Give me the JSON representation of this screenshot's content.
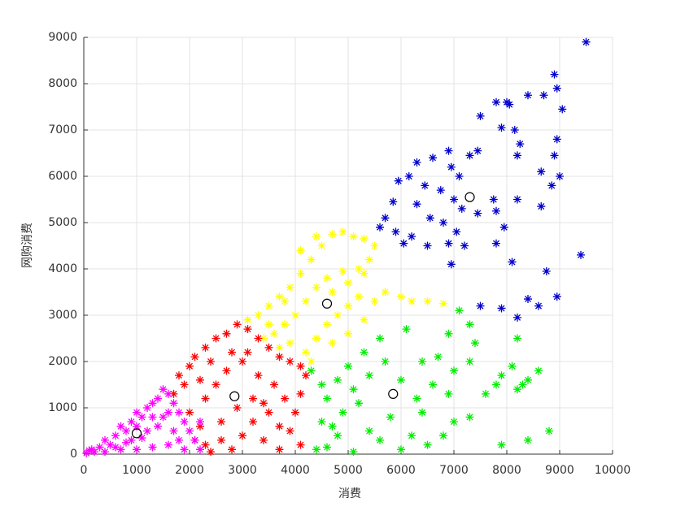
{
  "chart_data": {
    "type": "scatter",
    "xlabel": "消费",
    "ylabel": "网购消费",
    "xlim": [
      0,
      10000
    ],
    "ylim": [
      0,
      9000
    ],
    "xticks": [
      0,
      1000,
      2000,
      3000,
      4000,
      5000,
      6000,
      7000,
      8000,
      9000,
      10000
    ],
    "yticks": [
      0,
      1000,
      2000,
      3000,
      4000,
      5000,
      6000,
      7000,
      8000,
      9000
    ],
    "grid": true,
    "series": [
      {
        "color": "#0000cc",
        "marker": "*",
        "x": [
          9500,
          8900,
          8950,
          9050,
          7800,
          8000,
          8050,
          7500,
          7900,
          8150,
          8400,
          8700,
          8950,
          8250,
          8900,
          8650,
          9000,
          8850,
          8200,
          8650,
          8200,
          7450,
          7300,
          6900,
          6950,
          6600,
          6300,
          6150,
          5950,
          6450,
          7100,
          6750,
          7000,
          7150,
          7450,
          7750,
          7800,
          7950,
          7800,
          6800,
          6550,
          6300,
          5850,
          5700,
          5600,
          5900,
          6200,
          6050,
          6500,
          6900,
          7050,
          7200,
          6950,
          8100,
          8750,
          9400,
          8400,
          8600,
          8950,
          7900,
          8200,
          7500
        ],
        "y": [
          8900,
          8200,
          7900,
          7450,
          7600,
          7600,
          7550,
          7300,
          7050,
          7000,
          7750,
          7750,
          6800,
          6700,
          6450,
          6100,
          6000,
          5800,
          6450,
          5350,
          5500,
          6550,
          6450,
          6550,
          6200,
          6400,
          6300,
          6000,
          5900,
          5800,
          6000,
          5700,
          5500,
          5300,
          5200,
          5500,
          5250,
          4900,
          4550,
          5000,
          5100,
          5400,
          5450,
          5100,
          4900,
          4800,
          4700,
          4550,
          4500,
          4550,
          4800,
          4500,
          4100,
          4150,
          3950,
          4300,
          3350,
          3200,
          3400,
          3150,
          2950,
          3200
        ]
      },
      {
        "color": "#ffff00",
        "marker": "*",
        "x": [
          3100,
          3300,
          3500,
          3700,
          3900,
          4100,
          4300,
          4500,
          4700,
          4900,
          5100,
          5300,
          5500,
          5400,
          5200,
          4900,
          4600,
          4400,
          4200,
          4000,
          3800,
          3600,
          3400,
          3700,
          3900,
          4200,
          4400,
          4600,
          4800,
          5000,
          5200,
          5500,
          5700,
          6000,
          6200,
          6500,
          6800,
          4300,
          4700,
          5000,
          5300,
          4400,
          4100,
          3800,
          3500,
          4700,
          5000,
          5300
        ],
        "y": [
          2900,
          3000,
          3200,
          3400,
          3600,
          3900,
          4200,
          4500,
          4750,
          4800,
          4700,
          4650,
          4500,
          4200,
          4000,
          3950,
          3800,
          3600,
          3300,
          3000,
          2800,
          2600,
          2500,
          2300,
          2400,
          2200,
          2500,
          2800,
          3000,
          3200,
          3400,
          3300,
          3500,
          3400,
          3300,
          3300,
          3250,
          2000,
          2400,
          2600,
          2900,
          4700,
          4400,
          3300,
          2800,
          3500,
          3700,
          3900
        ]
      },
      {
        "color": "#00ee00",
        "marker": "*",
        "x": [
          4400,
          4600,
          5100,
          4500,
          4700,
          4900,
          5200,
          5400,
          5600,
          5800,
          6000,
          6200,
          6500,
          6800,
          7000,
          7300,
          7600,
          7900,
          8200,
          8400,
          8600,
          8800,
          8400,
          7900,
          4600,
          4800,
          5000,
          5300,
          5600,
          6100,
          6400,
          6700,
          6900,
          7100,
          7300,
          7400,
          7000,
          6600,
          6300,
          6000,
          5700,
          5400,
          5100,
          4800,
          6400,
          6900,
          7300,
          7800,
          8200,
          8100,
          8300,
          4300,
          4500
        ],
        "y": [
          100,
          150,
          50,
          700,
          600,
          900,
          1100,
          500,
          300,
          800,
          100,
          400,
          200,
          400,
          700,
          800,
          1300,
          1700,
          1400,
          1600,
          1800,
          500,
          300,
          200,
          1200,
          1600,
          1900,
          2200,
          2500,
          2700,
          2000,
          2100,
          2600,
          3100,
          2800,
          2400,
          1800,
          1500,
          1200,
          1600,
          2000,
          1700,
          1400,
          400,
          900,
          1300,
          2000,
          1500,
          2500,
          1900,
          1500,
          1800,
          1500
        ]
      },
      {
        "color": "#ff0000",
        "marker": "*",
        "x": [
          1700,
          1800,
          1900,
          2000,
          2100,
          2300,
          2500,
          2700,
          2900,
          3100,
          3300,
          3500,
          3700,
          3900,
          4100,
          4200,
          4100,
          4000,
          3900,
          4100,
          3700,
          3400,
          3200,
          3000,
          2800,
          2600,
          2400,
          2200,
          2000,
          2300,
          2500,
          2700,
          3000,
          3300,
          3600,
          3800,
          3500,
          3200,
          2900,
          2600,
          2300,
          2100,
          2200,
          2400,
          2800,
          3100,
          3400,
          3700
        ],
        "y": [
          1300,
          1700,
          1500,
          1900,
          2100,
          2300,
          2500,
          2600,
          2800,
          2700,
          2500,
          2300,
          2100,
          2000,
          1900,
          1700,
          1300,
          900,
          500,
          200,
          100,
          300,
          700,
          400,
          100,
          300,
          50,
          600,
          900,
          1200,
          1500,
          1800,
          2000,
          1700,
          1500,
          1200,
          900,
          1200,
          1000,
          700,
          200,
          300,
          1600,
          2000,
          2200,
          2200,
          1100,
          600
        ]
      },
      {
        "color": "#ff00ff",
        "marker": "*",
        "x": [
          50,
          100,
          200,
          300,
          400,
          500,
          600,
          700,
          800,
          900,
          1000,
          1100,
          1200,
          1300,
          1400,
          1500,
          1600,
          1700,
          1800,
          1900,
          2000,
          2100,
          2200,
          1900,
          1600,
          1300,
          1000,
          700,
          400,
          1500,
          1200,
          900,
          600,
          1100,
          1400,
          1700,
          1800,
          1000,
          800,
          1600,
          1300,
          2200,
          150
        ],
        "y": [
          20,
          80,
          50,
          150,
          300,
          200,
          400,
          600,
          500,
          700,
          900,
          800,
          1000,
          1100,
          1200,
          1400,
          1300,
          1100,
          900,
          700,
          500,
          300,
          100,
          100,
          200,
          150,
          100,
          100,
          50,
          800,
          500,
          300,
          150,
          350,
          600,
          500,
          300,
          600,
          250,
          900,
          800,
          700,
          100
        ]
      },
      {
        "color": "#000000",
        "marker": "o",
        "x": [
          7300,
          4600,
          5850,
          2850,
          1000
        ],
        "y": [
          5550,
          3250,
          1300,
          1250,
          450
        ]
      }
    ]
  }
}
